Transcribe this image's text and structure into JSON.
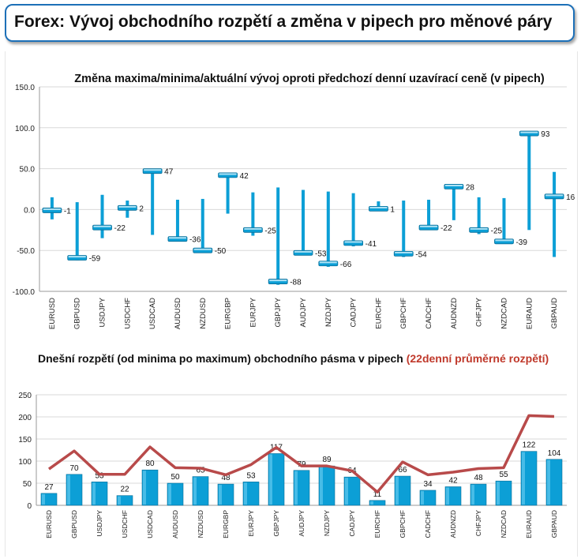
{
  "page": {
    "title": "Forex: Vývoj obchodního rozpětí a změna v pipech pro měnové páry",
    "colors": {
      "frame": "#1d70b8",
      "bar": "#0c9fd6",
      "line": "#b84a4a",
      "accent_text": "#c0392b"
    }
  },
  "chart_data": [
    {
      "type": "range",
      "title": "Změna maxima/minima/aktuální vývoj oproti předchozí denní uzavírací ceně (v pipech)",
      "xlabel": "",
      "ylabel": "",
      "ylim": [
        -100,
        150
      ],
      "y_ticks": [
        "150.0",
        "100.0",
        "50.0",
        "0.0",
        "-50.0",
        "-100.0"
      ],
      "grid": true,
      "categories": [
        "EURUSD",
        "GBPUSD",
        "USDJPY",
        "USDCHF",
        "USDCAD",
        "AUDUSD",
        "NZDUSD",
        "EURGBP",
        "EURJPY",
        "GBPJPY",
        "AUDJPY",
        "NZDJPY",
        "CADJPY",
        "EURCHF",
        "GBPCHF",
        "CADCHF",
        "AUDNZD",
        "CHFJPY",
        "NZDCAD",
        "EURAUD",
        "GBPAUD"
      ],
      "high": [
        15,
        9,
        18,
        11,
        47,
        12,
        13,
        42,
        21,
        27,
        24,
        22,
        20,
        10,
        11,
        12,
        30,
        15,
        14,
        96,
        46
      ],
      "low": [
        -12,
        -62,
        -35,
        -10,
        -31,
        -38,
        -52,
        -5,
        -32,
        -92,
        -55,
        -70,
        -45,
        -2,
        -58,
        -25,
        -13,
        -30,
        -42,
        -25,
        -58
      ],
      "current": [
        -1,
        -59,
        -22,
        2,
        47,
        -36,
        -50,
        42,
        -25,
        -88,
        -53,
        -66,
        -41,
        1,
        -54,
        -22,
        28,
        -25,
        -39,
        93,
        16
      ],
      "current_labels": [
        "-1",
        "-59",
        "-22",
        "2",
        "47",
        "-36",
        "-50",
        "42",
        "-25",
        "-88",
        "-53",
        "-66",
        "-41",
        "1",
        "-54",
        "-22",
        "28",
        "-25",
        "-39",
        "93",
        "16"
      ]
    },
    {
      "type": "bar",
      "title": "Dnešní rozpětí (od minima po maximum) obchodního pásma v pipech",
      "title_accent": "(22denní průměrné rozpětí)",
      "xlabel": "",
      "ylabel": "",
      "ylim": [
        0,
        250
      ],
      "y_ticks": [
        "250",
        "200",
        "150",
        "100",
        "50",
        "0"
      ],
      "grid": true,
      "categories": [
        "EURUSD",
        "GBPUSD",
        "USDJPY",
        "USDCHF",
        "USDCAD",
        "AUDUSD",
        "NZDUSD",
        "EURGBP",
        "EURJPY",
        "GBPJPY",
        "AUDJPY",
        "NZDJPY",
        "CADJPY",
        "EURCHF",
        "GBPCHF",
        "CADCHF",
        "AUDNZD",
        "CHFJPY",
        "NZDCAD",
        "EURAUD",
        "GBPAUD"
      ],
      "series": [
        {
          "values": [
            27,
            70,
            53,
            22,
            80,
            50,
            65,
            48,
            53,
            117,
            79,
            89,
            64,
            11,
            66,
            34,
            42,
            48,
            55,
            122,
            104
          ]
        },
        {
          "values": [
            82,
            123,
            70,
            70,
            132,
            85,
            84,
            69,
            92,
            131,
            89,
            89,
            78,
            30,
            98,
            69,
            75,
            83,
            85,
            203,
            201
          ]
        }
      ],
      "value_labels": [
        "27",
        "70",
        "53",
        "22",
        "80",
        "50",
        "65",
        "48",
        "53",
        "117",
        "79",
        "89",
        "64",
        "11",
        "66",
        "34",
        "42",
        "48",
        "55",
        "122",
        "104"
      ]
    }
  ]
}
